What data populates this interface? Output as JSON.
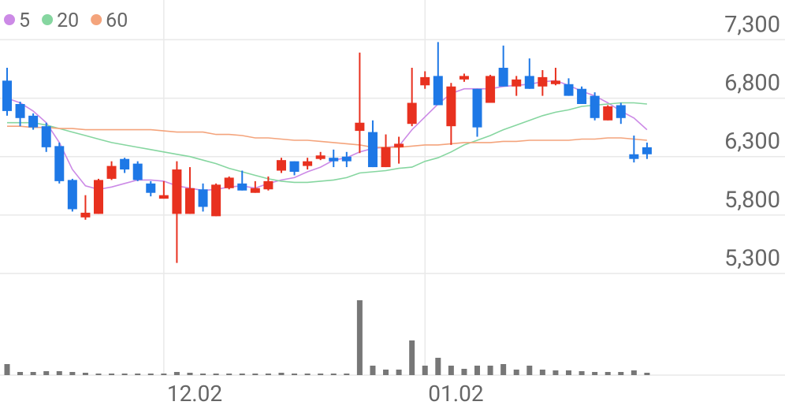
{
  "chart_data": {
    "type": "candlestick",
    "categories": [
      null,
      null,
      null,
      null,
      null,
      null,
      null,
      null,
      null,
      null,
      null,
      null,
      "12.02",
      null,
      null,
      null,
      null,
      null,
      null,
      null,
      null,
      null,
      null,
      null,
      null,
      null,
      null,
      null,
      null,
      null,
      null,
      null,
      "01.02",
      null,
      null,
      null,
      null,
      null,
      null,
      null,
      null,
      null,
      null,
      null,
      null,
      null,
      null,
      null,
      null,
      null
    ],
    "open": [
      6950,
      6750,
      6650,
      6560,
      6390,
      6100,
      5780,
      5810,
      6110,
      6280,
      6240,
      6070,
      5940,
      5810,
      5810,
      6020,
      5790,
      6030,
      6070,
      5990,
      6020,
      6180,
      6260,
      6220,
      6280,
      6290,
      6300,
      6520,
      6510,
      6210,
      6380,
      6580,
      6910,
      6990,
      6560,
      6960,
      6880,
      6760,
      7060,
      6900,
      6990,
      6900,
      6920,
      6920,
      6880,
      6820,
      6610,
      6740,
      6320,
      6380
    ],
    "high": [
      7060,
      6770,
      6670,
      6590,
      6420,
      6110,
      5970,
      6110,
      6260,
      6290,
      6260,
      6090,
      6090,
      6260,
      6210,
      6070,
      6070,
      6130,
      6180,
      6090,
      6130,
      6290,
      6260,
      6290,
      6340,
      6360,
      6340,
      7190,
      6610,
      6490,
      6470,
      7060,
      7030,
      7280,
      6930,
      7010,
      6880,
      7000,
      7250,
      6990,
      7140,
      7040,
      7060,
      6970,
      6900,
      6850,
      6740,
      6760,
      6480,
      6420
    ],
    "low": [
      6650,
      6560,
      6530,
      6340,
      6070,
      5830,
      5760,
      5810,
      6100,
      6160,
      6090,
      5960,
      5940,
      5390,
      5810,
      5830,
      5790,
      6020,
      6010,
      5990,
      6010,
      6160,
      6140,
      6190,
      6270,
      6210,
      6210,
      6330,
      6210,
      6210,
      6240,
      6560,
      6880,
      6740,
      6400,
      6940,
      6470,
      6760,
      6900,
      6820,
      6880,
      6820,
      6910,
      6820,
      6750,
      6610,
      6610,
      6580,
      6250,
      6280
    ],
    "close": [
      6690,
      6630,
      6550,
      6380,
      6090,
      5850,
      5820,
      6100,
      6220,
      6190,
      6100,
      5990,
      5970,
      6190,
      6030,
      5870,
      6060,
      6120,
      6010,
      6030,
      6090,
      6270,
      6170,
      6260,
      6310,
      6260,
      6260,
      6590,
      6210,
      6380,
      6410,
      6760,
      6980,
      6740,
      6900,
      6990,
      6550,
      6990,
      6900,
      6960,
      6880,
      6980,
      6950,
      6820,
      6750,
      6630,
      6730,
      6630,
      6280,
      6320
    ],
    "volume": [
      14,
      4,
      4,
      5,
      5,
      4,
      3,
      2,
      2,
      2,
      2,
      2,
      2,
      4,
      3,
      2,
      2,
      2,
      2,
      2,
      2,
      3,
      2,
      2,
      2,
      2,
      2,
      95,
      12,
      7,
      7,
      44,
      12,
      22,
      12,
      8,
      12,
      12,
      14,
      7,
      12,
      7,
      6,
      6,
      5,
      4,
      4,
      4,
      6,
      3
    ],
    "up_color": "#e8311f",
    "down_color": "#1e78e6",
    "volume_color": "#777777",
    "series": [
      {
        "name": "5",
        "color": "#cc8ae6",
        "values": [
          6800,
          6760,
          6690,
          6590,
          6420,
          6190,
          6050,
          6020,
          6040,
          6070,
          6100,
          6100,
          6090,
          6050,
          6030,
          6010,
          6020,
          6040,
          6050,
          6030,
          6070,
          6100,
          6120,
          6170,
          6210,
          6270,
          6290,
          6340,
          6370,
          6380,
          6390,
          6530,
          6640,
          6750,
          6840,
          6880,
          6880,
          6880,
          6900,
          6910,
          6920,
          6940,
          6950,
          6910,
          6860,
          6820,
          6760,
          6690,
          6630,
          6530
        ]
      },
      {
        "name": "20",
        "color": "#86d6a0",
        "values": [
          6590,
          6590,
          6590,
          6570,
          6540,
          6510,
          6480,
          6450,
          6420,
          6400,
          6380,
          6360,
          6340,
          6320,
          6300,
          6270,
          6240,
          6200,
          6170,
          6140,
          6110,
          6090,
          6080,
          6080,
          6090,
          6100,
          6120,
          6160,
          6170,
          6180,
          6200,
          6210,
          6260,
          6290,
          6340,
          6400,
          6440,
          6480,
          6530,
          6570,
          6610,
          6650,
          6680,
          6700,
          6730,
          6740,
          6750,
          6760,
          6760,
          6750
        ]
      },
      {
        "name": "60",
        "color": "#f4a47c",
        "values": [
          6560,
          6560,
          6550,
          6550,
          6540,
          6540,
          6530,
          6530,
          6530,
          6530,
          6530,
          6530,
          6520,
          6510,
          6510,
          6510,
          6490,
          6490,
          6480,
          6460,
          6460,
          6450,
          6440,
          6440,
          6430,
          6420,
          6410,
          6400,
          6380,
          6380,
          6380,
          6390,
          6400,
          6400,
          6410,
          6420,
          6420,
          6420,
          6430,
          6430,
          6440,
          6440,
          6440,
          6440,
          6450,
          6450,
          6460,
          6460,
          6450,
          6440
        ]
      }
    ],
    "ylim": [
      5280,
      7640
    ],
    "yticks": [
      {
        "value": 7300,
        "label": "7,300"
      },
      {
        "value": 6800,
        "label": "6,800"
      },
      {
        "value": 6300,
        "label": "6,300"
      },
      {
        "value": 5800,
        "label": "5,800"
      },
      {
        "value": 5300,
        "label": "5,300"
      }
    ],
    "grid": true
  }
}
